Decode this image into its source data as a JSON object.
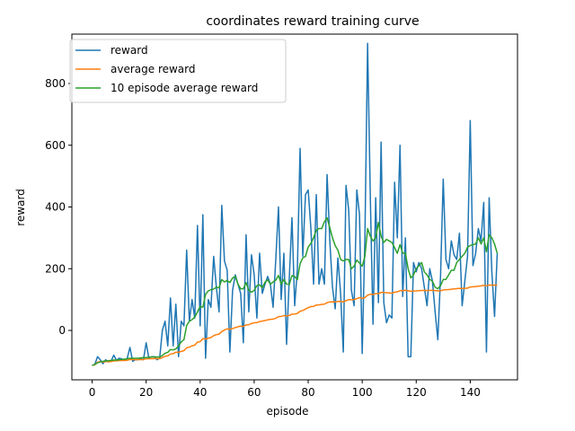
{
  "chart_data": {
    "type": "line",
    "title": "coordinates reward training curve",
    "xlabel": "episode",
    "ylabel": "reward",
    "xlim": [
      -7.5,
      157.5
    ],
    "ylim": [
      -160,
      960
    ],
    "xticks": [
      0,
      20,
      40,
      60,
      80,
      100,
      120,
      140
    ],
    "yticks": [
      0,
      200,
      400,
      600,
      800
    ],
    "grid": false,
    "legend": "upper left",
    "series": [
      {
        "name": "reward",
        "color": "#1f77b4",
        "values": [
          -113,
          -110,
          -85,
          -95,
          -108,
          -95,
          -102,
          -100,
          -80,
          -97,
          -90,
          -92,
          -97,
          -90,
          -55,
          -100,
          -95,
          -95,
          -92,
          -95,
          -40,
          -90,
          -85,
          -85,
          -95,
          -90,
          0,
          30,
          -50,
          105,
          -50,
          85,
          -85,
          30,
          15,
          260,
          30,
          100,
          40,
          340,
          15,
          375,
          -90,
          100,
          75,
          240,
          140,
          60,
          405,
          225,
          195,
          -70,
          130,
          180,
          150,
          120,
          -40,
          310,
          60,
          245,
          180,
          40,
          250,
          120,
          150,
          175,
          150,
          75,
          230,
          400,
          100,
          250,
          -45,
          170,
          365,
          80,
          200,
          590,
          240,
          440,
          455,
          330,
          150,
          440,
          150,
          200,
          150,
          505,
          290,
          140,
          70,
          235,
          120,
          -70,
          470,
          390,
          130,
          80,
          455,
          375,
          -75,
          300,
          930,
          435,
          20,
          430,
          90,
          610,
          90,
          25,
          50,
          40,
          480,
          300,
          600,
          110,
          300,
          -85,
          -85,
          220,
          190,
          220,
          200,
          140,
          80,
          200,
          160,
          60,
          -30,
          175,
          490,
          230,
          200,
          290,
          245,
          230,
          315,
          80,
          160,
          240,
          680,
          210,
          250,
          330,
          290,
          415,
          -70,
          430,
          190,
          45,
          250
        ]
      },
      {
        "name": "average reward",
        "color": "#ff7f0e",
        "values": [
          -113,
          -111.5,
          -102.7,
          -100.8,
          -102.2,
          -101,
          -101.1,
          -101,
          -98.7,
          -98.6,
          -97.8,
          -97.3,
          -97.3,
          -96.8,
          -94,
          -94.4,
          -94.5,
          -94.5,
          -94.4,
          -94.4,
          -91.9,
          -91.8,
          -91.5,
          -91.2,
          -91.4,
          -91.3,
          -87.9,
          -83.7,
          -82.6,
          -76.2,
          -75.4,
          -70.4,
          -71,
          -67.9,
          -65.5,
          -56.4,
          -54,
          -49.9,
          -47.6,
          -37.7,
          -36.4,
          -26.5,
          -28,
          -25.1,
          -22.8,
          -17,
          -13.6,
          -11.9,
          -3.4,
          1.2,
          5.1,
          3.6,
          6,
          9.3,
          11.9,
          13.8,
          12.8,
          17.9,
          18.6,
          22.4,
          25,
          25.2,
          28.8,
          30.2,
          32.1,
          34.3,
          36,
          36.6,
          39.4,
          44.6,
          45.3,
          48.2,
          46.9,
          48.6,
          52.9,
          53.2,
          55.2,
          62.2,
          64.5,
          69.2,
          74,
          77.1,
          78,
          82.3,
          83,
          84.4,
          85.1,
          90,
          92.3,
          92.8,
          92.5,
          94,
          94.2,
          92.4,
          96.4,
          99.5,
          99.8,
          99.5,
          103.2,
          106.1,
          104.3,
          106.2,
          114.2,
          117.3,
          116.3,
          119.4,
          119.1,
          123.2,
          122.9,
          122,
          121.4,
          120.7,
          123.6,
          125,
          129.1,
          128.9,
          130.3,
          128.5,
          126.8,
          127.6,
          128.1,
          128.9,
          129.5,
          129.6,
          129.2,
          129.8,
          129.9,
          129.2,
          127.9,
          128.3,
          131.1,
          131.9,
          132.4,
          133.6,
          134.4,
          135.2,
          136.5,
          136.1,
          136.3,
          137,
          140.9,
          141.4,
          142.1,
          143.4,
          144.4,
          146.3,
          144.9,
          146.8,
          147.1,
          146.4,
          147.1
        ]
      },
      {
        "name": "10 episode average reward",
        "color": "#2ca02c",
        "values": [
          -113,
          -110,
          -105,
          -102,
          -100,
          -99,
          -98,
          -97,
          -96,
          -96,
          -95,
          -94,
          -93,
          -92,
          -90,
          -90,
          -90,
          -90,
          -89,
          -88,
          -88,
          -87,
          -86,
          -86,
          -86,
          -86,
          -81,
          -74,
          -71,
          -62,
          -63,
          -60,
          -50,
          -37,
          -30,
          16,
          30,
          35,
          43,
          60,
          78,
          75,
          117,
          128,
          132,
          134,
          140,
          138,
          165,
          157,
          162,
          155,
          170,
          175,
          150,
          135,
          135,
          155,
          130,
          124,
          130,
          145,
          148,
          138,
          156,
          164,
          150,
          157,
          163,
          178,
          150,
          165,
          150,
          149,
          178,
          174,
          165,
          216,
          235,
          240,
          270,
          282,
          300,
          325,
          330,
          330,
          352,
          365,
          333,
          300,
          275,
          260,
          230,
          225,
          230,
          230,
          200,
          208,
          228,
          218,
          208,
          240,
          330,
          305,
          290,
          300,
          350,
          305,
          285,
          295,
          290,
          285,
          268,
          250,
          278,
          250,
          250,
          200,
          170,
          180,
          200,
          210,
          220,
          190,
          180,
          165,
          160,
          140,
          135,
          145,
          165,
          165,
          180,
          195,
          195,
          220,
          230,
          240,
          250,
          270,
          275,
          278,
          280,
          300,
          280,
          300,
          255,
          310,
          300,
          280,
          250
        ]
      }
    ]
  }
}
